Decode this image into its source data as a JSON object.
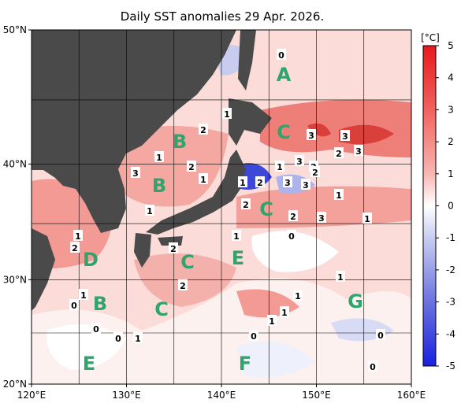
{
  "title": "Daily SST anomalies 29 Apr. 2026.",
  "lon_ticks": [
    {
      "value": 120,
      "label": "120°E"
    },
    {
      "value": 130,
      "label": "130°E"
    },
    {
      "value": 140,
      "label": "140°E"
    },
    {
      "value": 150,
      "label": "150°E"
    },
    {
      "value": 160,
      "label": "160°E"
    }
  ],
  "lat_ticks": [
    {
      "value": 20,
      "label": "20°N"
    },
    {
      "value": 30,
      "label": "30°N"
    },
    {
      "value": 40,
      "label": "40°N"
    },
    {
      "value": 50,
      "label": "50°N"
    }
  ],
  "grid_interval": 5,
  "colorbar": {
    "unit": "[°C]",
    "range": [
      -5,
      5
    ],
    "ticks": [
      5,
      4,
      3,
      2,
      1,
      0,
      -1,
      -2,
      -3,
      -4,
      -5
    ]
  },
  "regions": [
    "A",
    "C",
    "B",
    "B",
    "C",
    "D",
    "C",
    "E",
    "B",
    "C",
    "G",
    "E",
    "F"
  ],
  "contour_labels": [
    "0",
    "1",
    "2",
    "1",
    "2",
    "3",
    "1",
    "3",
    "3",
    "2",
    "3",
    "2",
    "1",
    "3",
    "2",
    "3",
    "3",
    "2",
    "1",
    "2",
    "1",
    "3",
    "2",
    "1",
    "1",
    "2",
    "1",
    "0",
    "1",
    "2",
    "1",
    "2",
    "1",
    "0",
    "1",
    "1",
    "1",
    "0",
    "0",
    "1",
    "0",
    "0",
    "0"
  ]
}
